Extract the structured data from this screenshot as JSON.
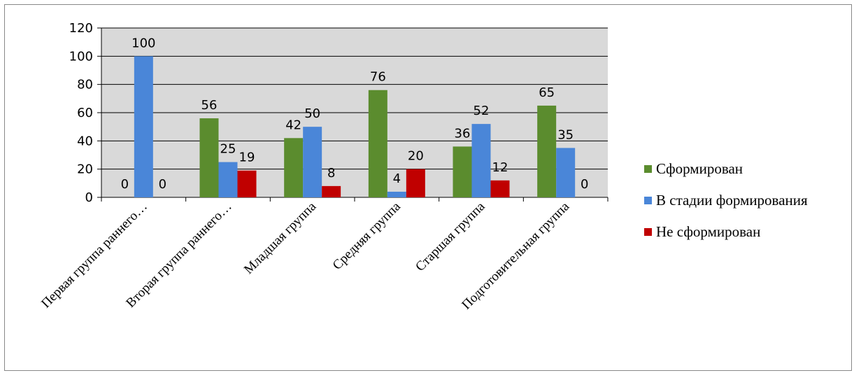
{
  "chart_data": {
    "type": "bar",
    "categories": [
      "Первая группа раннего…",
      "Вторая группа раннего…",
      "Младшая группа",
      "Средняя группа",
      "Старшая группа",
      "Подготовительная группа"
    ],
    "series": [
      {
        "name": "Сформирован",
        "color": "#5b8c2e",
        "values": [
          0,
          56,
          42,
          76,
          36,
          65
        ]
      },
      {
        "name": "В стадии формирования",
        "color": "#4a86d8",
        "values": [
          100,
          25,
          50,
          4,
          52,
          35
        ]
      },
      {
        "name": "Не сформирован",
        "color": "#c00000",
        "values": [
          0,
          19,
          8,
          20,
          12,
          0
        ]
      }
    ],
    "y_ticks": [
      "0",
      "20",
      "40",
      "60",
      "80",
      "100",
      "120"
    ],
    "ylim": [
      0,
      120
    ],
    "grid": true,
    "plot_background": "#d9d9d9",
    "legend_position": "right",
    "title": "",
    "xlabel": "",
    "ylabel": ""
  }
}
